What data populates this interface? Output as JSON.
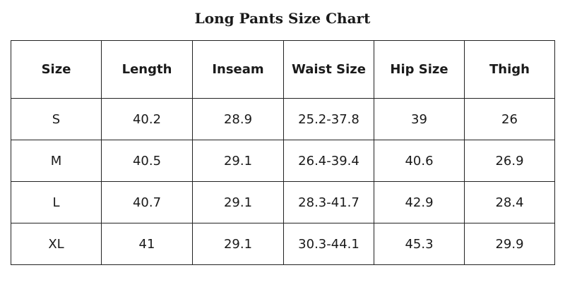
{
  "title": "Long Pants Size Chart",
  "table": {
    "headers": [
      "Size",
      "Length",
      "Inseam",
      "Waist Size",
      "Hip Size",
      "Thigh"
    ],
    "rows": [
      [
        "S",
        "40.2",
        "28.9",
        "25.2-37.8",
        "39",
        "26"
      ],
      [
        "M",
        "40.5",
        "29.1",
        "26.4-39.4",
        "40.6",
        "26.9"
      ],
      [
        "L",
        "40.7",
        "29.1",
        "28.3-41.7",
        "42.9",
        "28.4"
      ],
      [
        "XL",
        "41",
        "29.1",
        "30.3-44.1",
        "45.3",
        "29.9"
      ]
    ]
  }
}
